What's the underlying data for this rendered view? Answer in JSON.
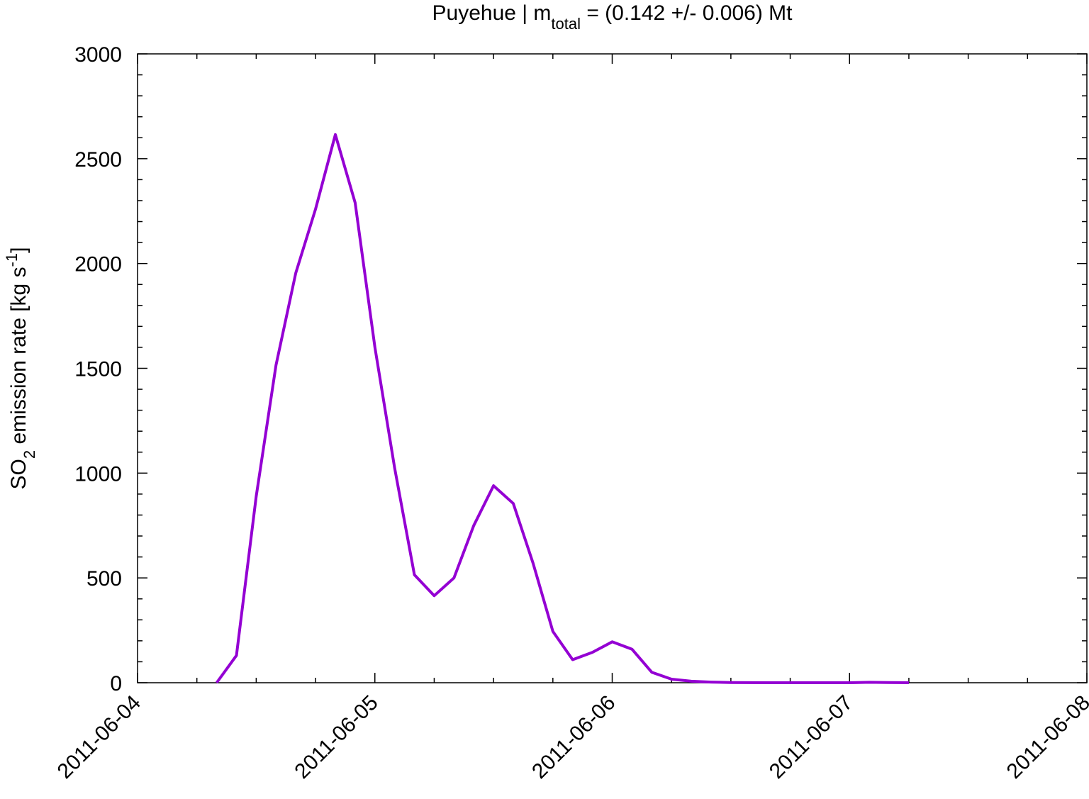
{
  "chart_data": {
    "type": "line",
    "title": [
      "Puyehue | m",
      "total",
      " = (0.142 +/- 0.006) Mt"
    ],
    "ylabel": [
      "SO",
      "2",
      " emission rate [kg s",
      "-1",
      "]"
    ],
    "x": [
      "2011-06-04T08:00",
      "2011-06-04T10:00",
      "2011-06-04T12:00",
      "2011-06-04T14:00",
      "2011-06-04T16:00",
      "2011-06-04T18:00",
      "2011-06-04T20:00",
      "2011-06-04T22:00",
      "2011-06-05T00:00",
      "2011-06-05T02:00",
      "2011-06-05T04:00",
      "2011-06-05T06:00",
      "2011-06-05T08:00",
      "2011-06-05T10:00",
      "2011-06-05T12:00",
      "2011-06-05T14:00",
      "2011-06-05T16:00",
      "2011-06-05T18:00",
      "2011-06-05T20:00",
      "2011-06-05T22:00",
      "2011-06-06T00:00",
      "2011-06-06T02:00",
      "2011-06-06T04:00",
      "2011-06-06T06:00",
      "2011-06-06T08:00",
      "2011-06-06T10:00",
      "2011-06-06T12:00",
      "2011-06-06T16:00",
      "2011-06-06T20:00",
      "2011-06-07T00:00",
      "2011-06-07T02:00",
      "2011-06-07T04:00",
      "2011-06-07T06:00"
    ],
    "values": [
      0,
      130,
      890,
      1515,
      1955,
      2260,
      2615,
      2290,
      1600,
      1025,
      515,
      415,
      500,
      750,
      940,
      855,
      570,
      245,
      110,
      145,
      195,
      160,
      50,
      17,
      7,
      3,
      1,
      0,
      0,
      0,
      2,
      1,
      0
    ],
    "color": "#9400d3",
    "xlim": [
      "2011-06-04",
      "2011-06-08"
    ],
    "xticks": [
      "2011-06-04",
      "2011-06-05",
      "2011-06-06",
      "2011-06-07",
      "2011-06-08"
    ],
    "ylim": [
      0,
      3000
    ],
    "yticks": [
      0,
      500,
      1000,
      1500,
      2000,
      2500,
      3000
    ]
  }
}
